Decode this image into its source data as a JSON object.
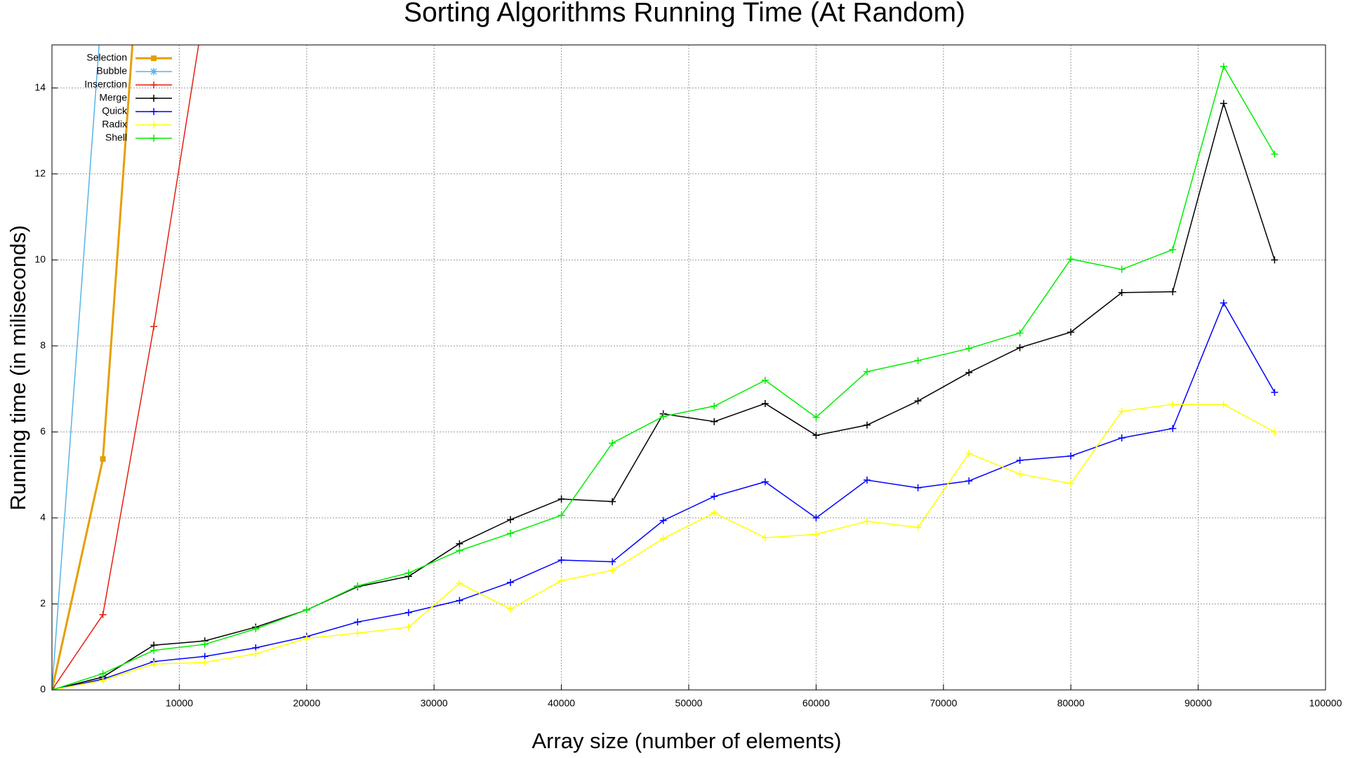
{
  "chart_data": {
    "type": "line",
    "title": "Sorting Algorithms Running Time (At Random)",
    "x_label": "Array size (number of elements)",
    "y_label": "Running time (in miliseconds)",
    "x": [
      0,
      4000,
      8000,
      12000,
      16000,
      20000,
      24000,
      28000,
      32000,
      36000,
      40000,
      44000,
      48000,
      52000,
      56000,
      60000,
      64000,
      68000,
      72000,
      76000,
      80000,
      84000,
      88000,
      92000,
      96000
    ],
    "series": [
      {
        "name": "Selection",
        "color": "#e69f00",
        "marker": "square",
        "values": [
          0,
          5.37,
          22,
          null,
          null,
          null,
          null,
          null,
          null,
          null,
          null,
          null,
          null,
          null,
          null,
          null,
          null,
          null,
          null,
          null,
          null,
          null,
          null,
          null,
          null
        ]
      },
      {
        "name": "Bubble",
        "color": "#56b4e9",
        "marker": "star",
        "values": [
          0,
          16.2,
          null,
          null,
          null,
          null,
          null,
          null,
          null,
          null,
          null,
          null,
          null,
          null,
          null,
          null,
          null,
          null,
          null,
          null,
          null,
          null,
          null,
          null,
          null
        ]
      },
      {
        "name": "Inserction",
        "color": "#e51e10",
        "marker": "plus",
        "values": [
          0,
          1.75,
          8.45,
          15.9,
          null,
          null,
          null,
          null,
          null,
          null,
          null,
          null,
          null,
          null,
          null,
          null,
          null,
          null,
          null,
          null,
          null,
          null,
          null,
          null,
          null
        ]
      },
      {
        "name": "Merge",
        "color": "#000000",
        "marker": "plus",
        "values": [
          0,
          0.3,
          1.04,
          1.14,
          1.46,
          1.86,
          2.4,
          2.64,
          3.4,
          3.96,
          4.44,
          4.38,
          6.42,
          6.24,
          6.66,
          5.92,
          6.16,
          6.72,
          7.38,
          7.96,
          8.32,
          9.24,
          9.26,
          13.64,
          10.0
        ]
      },
      {
        "name": "Quick",
        "color": "#0000ff",
        "marker": "plus",
        "values": [
          0,
          0.25,
          0.66,
          0.78,
          0.98,
          1.24,
          1.58,
          1.8,
          2.08,
          2.5,
          3.02,
          2.98,
          3.94,
          4.5,
          4.84,
          4.0,
          4.88,
          4.7,
          4.86,
          5.34,
          5.44,
          5.86,
          6.08,
          9.0,
          6.92
        ]
      },
      {
        "name": "Radix",
        "color": "#ffff00",
        "marker": "plus",
        "values": [
          0,
          0.22,
          0.6,
          0.64,
          0.84,
          1.2,
          1.32,
          1.46,
          2.48,
          1.88,
          2.54,
          2.78,
          3.52,
          4.12,
          3.54,
          3.62,
          3.92,
          3.78,
          5.5,
          5.02,
          4.8,
          6.48,
          6.64,
          6.64,
          6.0
        ]
      },
      {
        "name": "Shell",
        "color": "#00ee00",
        "marker": "plus",
        "values": [
          0,
          0.38,
          0.92,
          1.06,
          1.42,
          1.86,
          2.42,
          2.72,
          3.24,
          3.64,
          4.06,
          5.74,
          6.36,
          6.6,
          7.2,
          6.34,
          7.4,
          7.66,
          7.94,
          8.3,
          10.02,
          9.78,
          10.24,
          14.5,
          12.46
        ]
      }
    ],
    "xlim": [
      0,
      100000
    ],
    "xticks": [
      10000,
      20000,
      30000,
      40000,
      50000,
      60000,
      70000,
      80000,
      90000,
      100000
    ],
    "ylim": [
      0,
      15
    ],
    "yticks": [
      0,
      2,
      4,
      6,
      8,
      10,
      12,
      14
    ],
    "grid": true,
    "legend": "top-left"
  }
}
